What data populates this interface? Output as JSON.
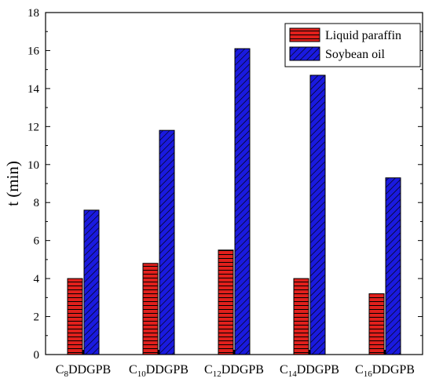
{
  "chart_data": {
    "type": "bar",
    "title": "",
    "xlabel": "",
    "ylabel": "t (min)",
    "ylim": [
      0,
      18
    ],
    "yticks": [
      0,
      2,
      4,
      6,
      8,
      10,
      12,
      14,
      16,
      18
    ],
    "grid": false,
    "legend_position": "top-right",
    "categories": [
      {
        "prefix": "C",
        "sub": "8",
        "suffix": "DDGPB"
      },
      {
        "prefix": "C",
        "sub": "10",
        "suffix": "DDGPB"
      },
      {
        "prefix": "C",
        "sub": "12",
        "suffix": "DDGPB"
      },
      {
        "prefix": "C",
        "sub": "14",
        "suffix": "DDGPB"
      },
      {
        "prefix": "C",
        "sub": "16",
        "suffix": "DDGPB"
      }
    ],
    "series": [
      {
        "name": "Liquid paraffin",
        "color": "#e0201c",
        "hatch": "horizontal",
        "values": [
          4.0,
          4.8,
          5.5,
          4.0,
          3.2
        ]
      },
      {
        "name": "Soybean oil",
        "color": "#1a1adf",
        "hatch": "diagonal",
        "values": [
          7.6,
          11.8,
          16.1,
          14.7,
          9.3
        ]
      }
    ]
  }
}
